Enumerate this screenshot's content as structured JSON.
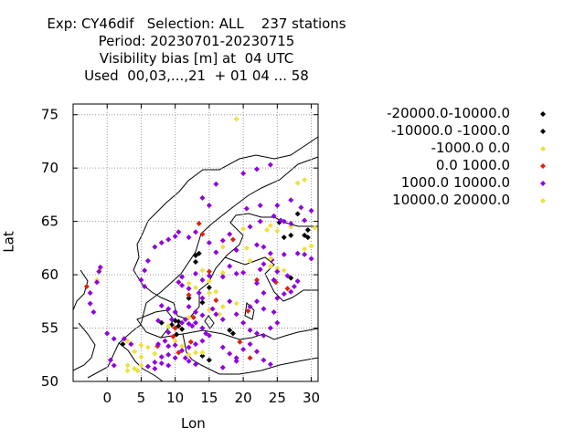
{
  "title_lines": [
    "Exp: CY46dif   Selection: ALL    237 stations",
    "Period: 20230701-20230715",
    "Visibility bias [m] at  04 UTC",
    "Used  00,03,...,21  + 01 04 ... 58"
  ],
  "chart_data": {
    "type": "scatter",
    "xlabel": "Lon",
    "ylabel": "Lat",
    "xlim": [
      -5,
      31
    ],
    "ylim": [
      50,
      76
    ],
    "xticks": [
      0,
      5,
      10,
      15,
      20,
      25,
      30
    ],
    "yticks": [
      50,
      55,
      60,
      65,
      70,
      75
    ],
    "grid": true,
    "legend_position": "right",
    "series": [
      {
        "name": "-20000.0-10000.0",
        "color": "#000000",
        "points": [
          [
            13,
            61.8
          ],
          [
            24.5,
            59.5
          ],
          [
            8,
            55.5
          ],
          [
            10,
            55
          ]
        ]
      },
      {
        "name": "-10000.0 -1000.0",
        "color": "#000000",
        "points": [
          [
            28,
            65.7
          ],
          [
            29.5,
            64.2
          ],
          [
            27,
            63.7
          ],
          [
            26,
            63.5
          ],
          [
            29.5,
            63.5
          ],
          [
            29,
            63.7
          ],
          [
            25.3,
            64.9
          ],
          [
            13.5,
            62.0
          ],
          [
            13,
            61.2
          ],
          [
            15,
            58.8
          ],
          [
            12,
            57.8
          ],
          [
            14,
            57.4
          ],
          [
            10,
            55.7
          ],
          [
            10.5,
            55.6
          ],
          [
            10.5,
            55.2
          ],
          [
            9.5,
            55.3
          ],
          [
            11,
            54.9
          ],
          [
            10.2,
            54.4
          ],
          [
            18,
            54.8
          ],
          [
            18.5,
            54.5
          ],
          [
            14,
            52.4
          ],
          [
            15,
            52
          ],
          [
            27,
            59.7
          ],
          [
            2.3,
            53.5
          ]
        ]
      },
      {
        "name": "-1000.0 0.0",
        "color": "#f0e040",
        "points": [
          [
            19,
            74.6
          ],
          [
            28,
            68.6
          ],
          [
            29,
            68.9
          ],
          [
            20,
            64.3
          ],
          [
            24,
            64.6
          ],
          [
            25,
            64.1
          ],
          [
            27,
            64.5
          ],
          [
            23.5,
            64.2
          ],
          [
            30.5,
            64.4
          ],
          [
            29,
            62.4
          ],
          [
            30,
            62.7
          ],
          [
            20.5,
            62.5
          ],
          [
            17,
            62.6
          ],
          [
            21,
            61.3
          ],
          [
            24,
            60.8
          ],
          [
            25,
            60.6
          ],
          [
            26,
            60.4
          ],
          [
            17,
            60.2
          ],
          [
            14,
            60.4
          ],
          [
            15,
            59.4
          ],
          [
            12,
            59.2
          ],
          [
            13,
            58.8
          ],
          [
            16,
            58.4
          ],
          [
            15,
            56.7
          ],
          [
            16.5,
            56.3
          ],
          [
            17,
            57
          ],
          [
            19,
            57.3
          ],
          [
            12,
            56
          ],
          [
            9,
            55.2
          ],
          [
            10,
            53.8
          ],
          [
            11,
            53.3
          ],
          [
            12,
            52.5
          ],
          [
            13,
            52.7
          ],
          [
            5,
            53.4
          ],
          [
            6,
            53.2
          ],
          [
            7,
            52.6
          ],
          [
            3,
            51.5
          ],
          [
            4,
            51.2
          ],
          [
            5,
            51.5
          ],
          [
            4.5,
            51
          ],
          [
            3,
            53.8
          ],
          [
            4,
            52.8
          ],
          [
            5,
            52.3
          ],
          [
            -1.5,
            59.5
          ],
          [
            -1,
            60.5
          ],
          [
            3,
            51
          ]
        ]
      },
      {
        "name": "0.0 1000.0",
        "color": "#e02010",
        "points": [
          [
            14,
            63.8
          ],
          [
            15,
            60.3
          ],
          [
            12,
            58.1
          ],
          [
            22,
            59.5
          ],
          [
            24.8,
            59.3
          ],
          [
            26.5,
            58.7
          ],
          [
            20.7,
            56.6
          ],
          [
            12.7,
            56
          ],
          [
            10,
            55
          ],
          [
            9.7,
            54.2
          ],
          [
            12.3,
            53.7
          ],
          [
            10.5,
            52.7
          ],
          [
            16,
            57.6
          ],
          [
            -3,
            58.9
          ],
          [
            7.4,
            53.3
          ],
          [
            21,
            52.2
          ],
          [
            19.5,
            53.7
          ],
          [
            10,
            56.5
          ],
          [
            18.5,
            63.3
          ],
          [
            13.5,
            64.8
          ]
        ]
      },
      {
        "name": "1000.0 10000.0",
        "color": "#9000e0",
        "points": [
          [
            -1.2,
            60.3
          ],
          [
            -1,
            60.7
          ],
          [
            -1.5,
            59.3
          ],
          [
            -2.5,
            58.3
          ],
          [
            -2.5,
            57.3
          ],
          [
            -2,
            56.5
          ],
          [
            0,
            54.5
          ],
          [
            1,
            54
          ],
          [
            2.5,
            54
          ],
          [
            3.5,
            53.5
          ],
          [
            0.5,
            52
          ],
          [
            1,
            51.5
          ],
          [
            20.5,
            66.2
          ],
          [
            22.5,
            66.5
          ],
          [
            16,
            68.5
          ],
          [
            20,
            69.5
          ],
          [
            22,
            69.9
          ],
          [
            24,
            70.3
          ],
          [
            14,
            67.2
          ],
          [
            15,
            66.5
          ],
          [
            21,
            64.5
          ],
          [
            22.5,
            65
          ],
          [
            24.5,
            65.5
          ],
          [
            25.5,
            65.1
          ],
          [
            26,
            65
          ],
          [
            27,
            64.8
          ],
          [
            29,
            65.1
          ],
          [
            30,
            66
          ],
          [
            27,
            67
          ],
          [
            28.5,
            66.3
          ],
          [
            25,
            66.5
          ],
          [
            17,
            63.2
          ],
          [
            18,
            63.8
          ],
          [
            12,
            63.5
          ],
          [
            13,
            64
          ],
          [
            15,
            63
          ],
          [
            16,
            62.1
          ],
          [
            19,
            62.3
          ],
          [
            22,
            62.8
          ],
          [
            23,
            62.6
          ],
          [
            24,
            62
          ],
          [
            24.2,
            61.4
          ],
          [
            26,
            61.9
          ],
          [
            28,
            62
          ],
          [
            29,
            61.9
          ],
          [
            30,
            61.5
          ],
          [
            25,
            60.3
          ],
          [
            22.5,
            60.5
          ],
          [
            23,
            61
          ],
          [
            18,
            60.8
          ],
          [
            19,
            60.1
          ],
          [
            20,
            60.2
          ],
          [
            17,
            59.8
          ],
          [
            15,
            59.9
          ],
          [
            14,
            59.5
          ],
          [
            13,
            60.1
          ],
          [
            11,
            59.8
          ],
          [
            10.5,
            59.3
          ],
          [
            11,
            59
          ],
          [
            12,
            58.7
          ],
          [
            13.5,
            58.3
          ],
          [
            14,
            57.8
          ],
          [
            12,
            57
          ],
          [
            13,
            56.5
          ],
          [
            14,
            56.2
          ],
          [
            15.5,
            56.8
          ],
          [
            16,
            56.3
          ],
          [
            17,
            55.8
          ],
          [
            18,
            57.5
          ],
          [
            19,
            56.3
          ],
          [
            20,
            55.5
          ],
          [
            21,
            54.8
          ],
          [
            22,
            54.5
          ],
          [
            23,
            54.3
          ],
          [
            24,
            55
          ],
          [
            25,
            55.5
          ],
          [
            24.5,
            56.5
          ],
          [
            23,
            56.8
          ],
          [
            21,
            57
          ],
          [
            22,
            57.5
          ],
          [
            25,
            57.8
          ],
          [
            26,
            58.2
          ],
          [
            27,
            58.4
          ],
          [
            27.5,
            58.9
          ],
          [
            28,
            59.4
          ],
          [
            23,
            58.3
          ],
          [
            22,
            59.2
          ],
          [
            24.5,
            59.5
          ],
          [
            26.5,
            59.9
          ],
          [
            8,
            57.1
          ],
          [
            9,
            56.8
          ],
          [
            10,
            56.5
          ],
          [
            9.5,
            55.8
          ],
          [
            11,
            55.5
          ],
          [
            11.5,
            55.8
          ],
          [
            12,
            55.4
          ],
          [
            13,
            55.5
          ],
          [
            12.5,
            55.2
          ],
          [
            14,
            55
          ],
          [
            14.5,
            54.5
          ],
          [
            15,
            54.3
          ],
          [
            9,
            54.6
          ],
          [
            8.5,
            53.8
          ],
          [
            7.5,
            53.5
          ],
          [
            9,
            53.3
          ],
          [
            10,
            53.4
          ],
          [
            11,
            52.9
          ],
          [
            12,
            53.2
          ],
          [
            13,
            53.5
          ],
          [
            14,
            53.8
          ],
          [
            8,
            52.3
          ],
          [
            9,
            52.5
          ],
          [
            10,
            52.2
          ],
          [
            11.5,
            52.2
          ],
          [
            12,
            51.9
          ],
          [
            13,
            51.6
          ],
          [
            7,
            51.8
          ],
          [
            6,
            51.4
          ],
          [
            7,
            51.2
          ],
          [
            8,
            51.7
          ],
          [
            9,
            51.5
          ],
          [
            17,
            53.2
          ],
          [
            18,
            52.6
          ],
          [
            19,
            52.2
          ],
          [
            20,
            53
          ],
          [
            21,
            53.5
          ],
          [
            22,
            52.8
          ],
          [
            23,
            52
          ],
          [
            24,
            51.6
          ],
          [
            17,
            51.3
          ],
          [
            19,
            51.9
          ],
          [
            7.5,
            55.7
          ],
          [
            5.5,
            58.9
          ],
          [
            6,
            61.3
          ],
          [
            5.5,
            60.4
          ],
          [
            7,
            62.6
          ],
          [
            8,
            63
          ],
          [
            9,
            63.3
          ],
          [
            10,
            63.6
          ],
          [
            10.5,
            64
          ],
          [
            5,
            59.5
          ]
        ]
      },
      {
        "name": "10000.0 20000.0",
        "color": "#f0e040",
        "points": [
          [
            24,
            61.5
          ],
          [
            15,
            58.3
          ],
          [
            14,
            52.7
          ]
        ]
      }
    ]
  }
}
